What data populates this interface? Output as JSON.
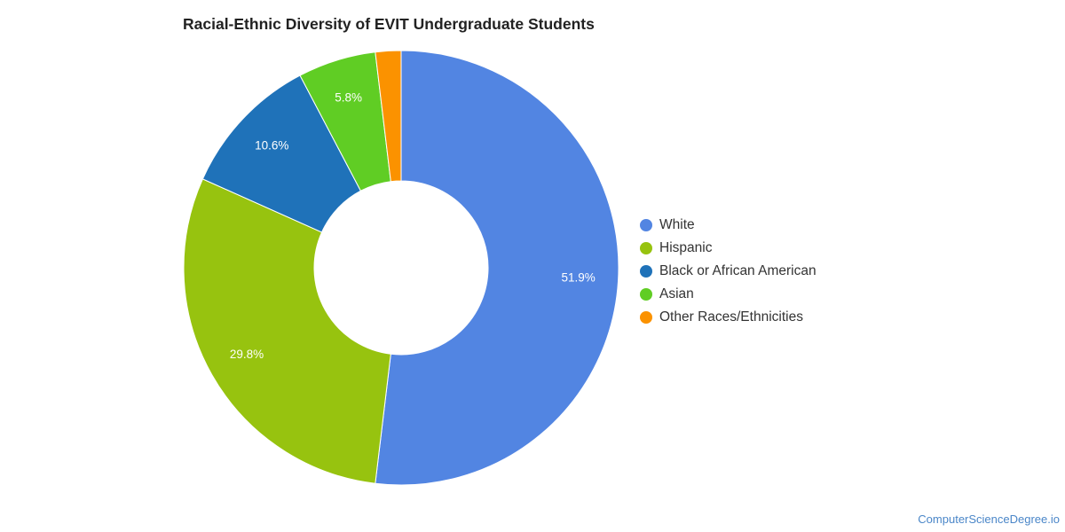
{
  "chart_data": {
    "type": "pie",
    "title": "Racial-Ethnic Diversity of EVIT Undergraduate Students",
    "slices": [
      {
        "label": "White",
        "value": 51.9,
        "display": "51.9%",
        "color": "#5285e2"
      },
      {
        "label": "Hispanic",
        "value": 29.8,
        "display": "29.8%",
        "color": "#97c30f"
      },
      {
        "label": "Black or African American",
        "value": 10.6,
        "display": "10.6%",
        "color": "#1f72b9"
      },
      {
        "label": "Asian",
        "value": 5.8,
        "display": "5.8%",
        "color": "#60cd24"
      },
      {
        "label": "Other Races/Ethnicities",
        "value": 1.9,
        "display": "",
        "color": "#fb9200"
      }
    ],
    "legend_position": "right"
  },
  "footer": {
    "source": "ComputerScienceDegree.io"
  }
}
